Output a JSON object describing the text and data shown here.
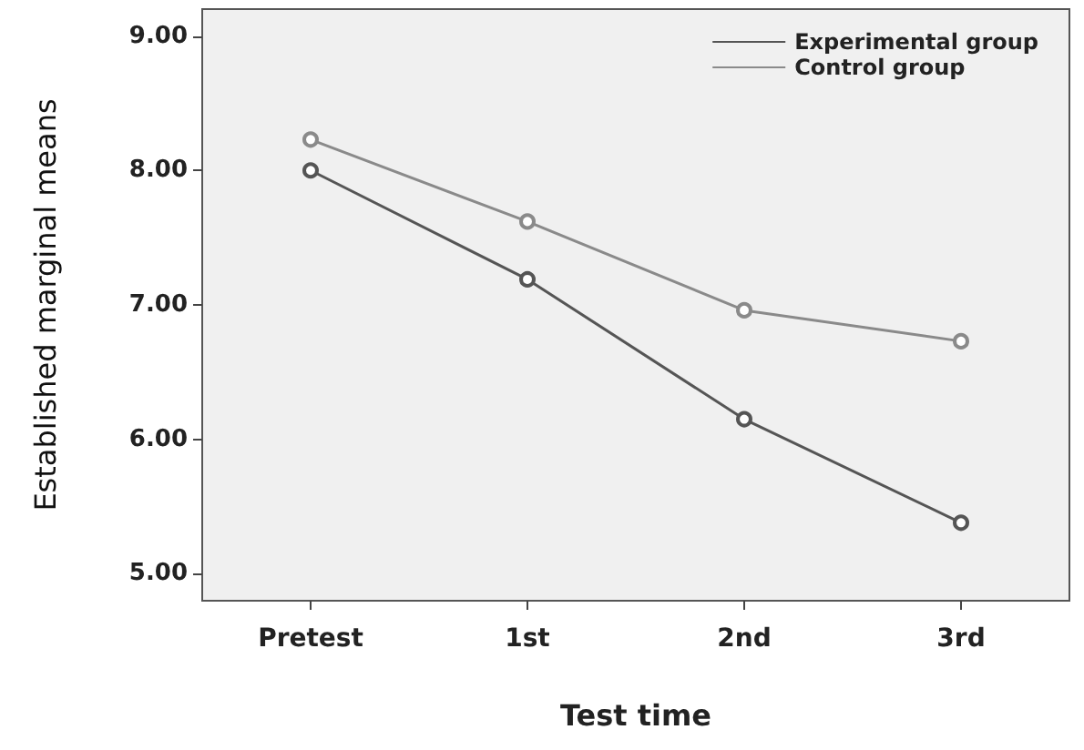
{
  "chart_data": {
    "type": "line",
    "xlabel": "Test time",
    "ylabel": "Established marginal means",
    "categories": [
      "Pretest",
      "1st",
      "2nd",
      "3rd"
    ],
    "series": [
      {
        "name": "Experimental group",
        "color": "#555555",
        "values": [
          8.0,
          7.19,
          6.15,
          5.38
        ]
      },
      {
        "name": "Control group",
        "color": "#8a8a8a",
        "values": [
          8.23,
          7.62,
          6.96,
          6.73
        ]
      }
    ],
    "ylim": [
      4.8,
      9.2
    ],
    "yticks": [
      {
        "value": 5,
        "label": "5.00"
      },
      {
        "value": 6,
        "label": "6.00"
      },
      {
        "value": 7,
        "label": "7.00"
      },
      {
        "value": 8,
        "label": "8.00"
      },
      {
        "value": 9,
        "label": "9.00"
      }
    ],
    "grid": false,
    "legend": "top right",
    "marker": "circle",
    "line_style": "solid"
  }
}
